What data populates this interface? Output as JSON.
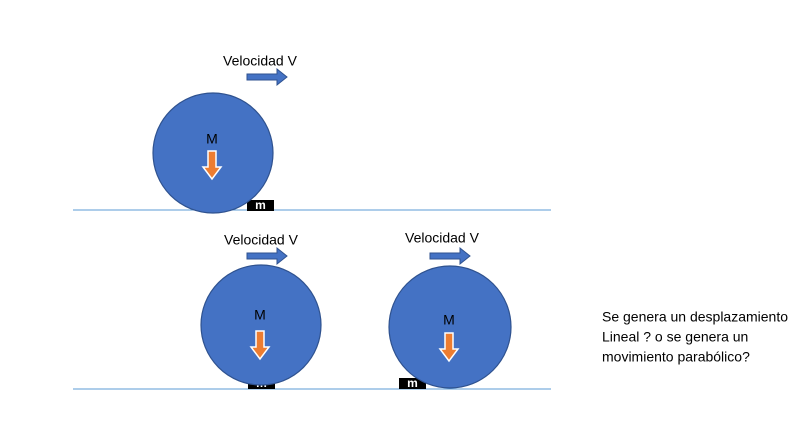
{
  "scenes": [
    {
      "velocity_label": "Velocidad V",
      "large_mass": "M",
      "small_mass": "m"
    },
    {
      "velocity_label": "Velocidad V",
      "large_mass": "M",
      "small_mass": "m"
    },
    {
      "velocity_label": "Velocidad V",
      "large_mass": "M",
      "small_mass": "m"
    }
  ],
  "question": [
    "Se genera un desplazamiento",
    "Lineal ? o se genera un",
    "movimiento parabólico?"
  ]
}
